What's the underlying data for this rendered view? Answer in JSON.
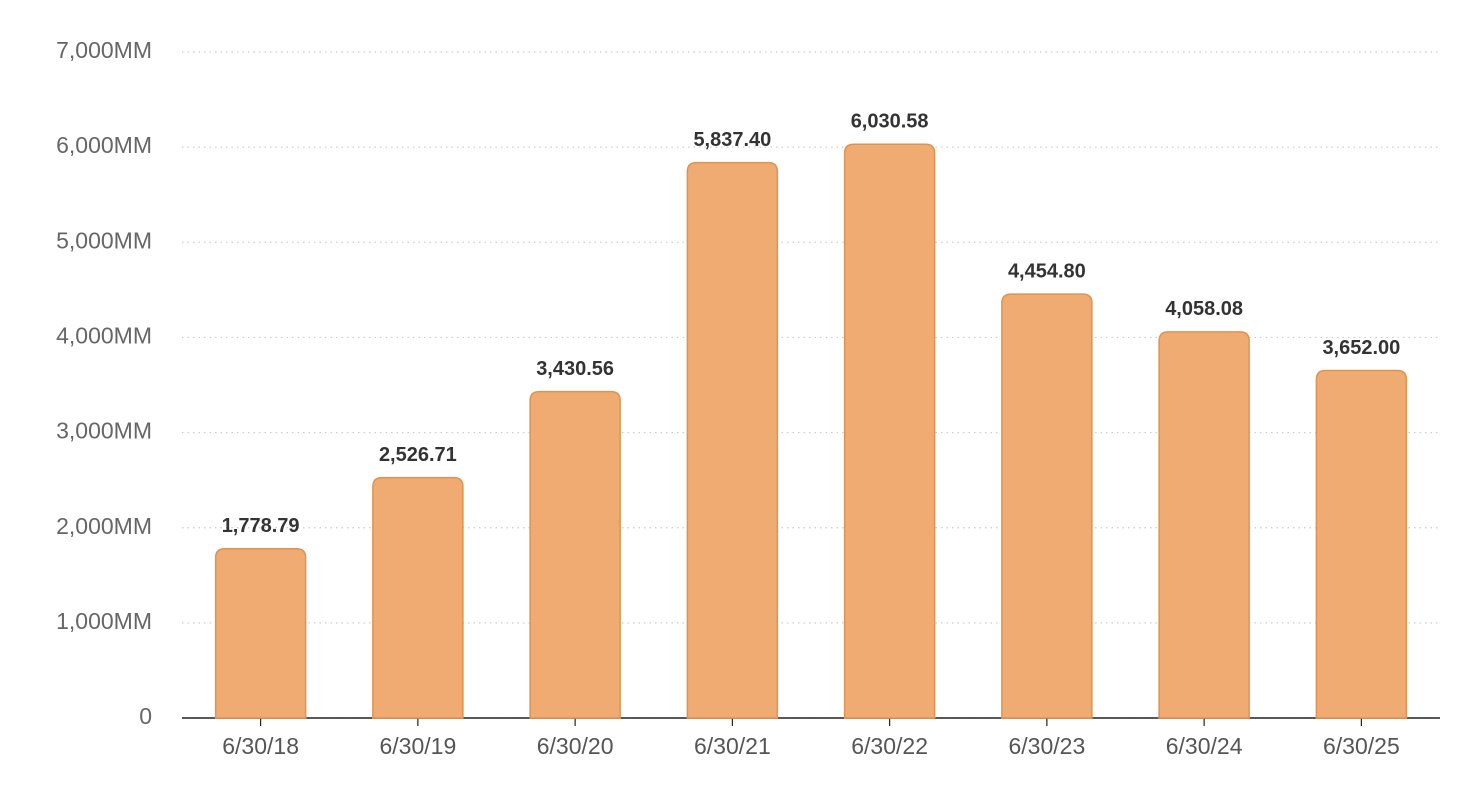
{
  "chart_data": {
    "type": "bar",
    "categories": [
      "6/30/18",
      "6/30/19",
      "6/30/20",
      "6/30/21",
      "6/30/22",
      "6/30/23",
      "6/30/24",
      "6/30/25"
    ],
    "values": [
      1778.79,
      2526.71,
      3430.56,
      5837.4,
      6030.58,
      4454.8,
      4058.08,
      3652.0
    ],
    "value_labels": [
      "1,778.79",
      "2,526.71",
      "3,430.56",
      "5,837.40",
      "6,030.58",
      "4,454.80",
      "4,058.08",
      "3,652.00"
    ],
    "color": "#f0ab72",
    "ylim": [
      0,
      7000
    ],
    "yticks": [
      0,
      {
        "value": 1000,
        "label": "1,000MM"
      },
      {
        "value": 2000,
        "label": "2,000MM"
      },
      {
        "value": 3000,
        "label": "3,000MM"
      },
      {
        "value": 4000,
        "label": "4,000MM"
      },
      {
        "value": 5000,
        "label": "5,000MM"
      },
      {
        "value": 6000,
        "label": "6,000MM"
      },
      {
        "value": 7000,
        "label": "7,000MM"
      }
    ],
    "grid": true
  }
}
